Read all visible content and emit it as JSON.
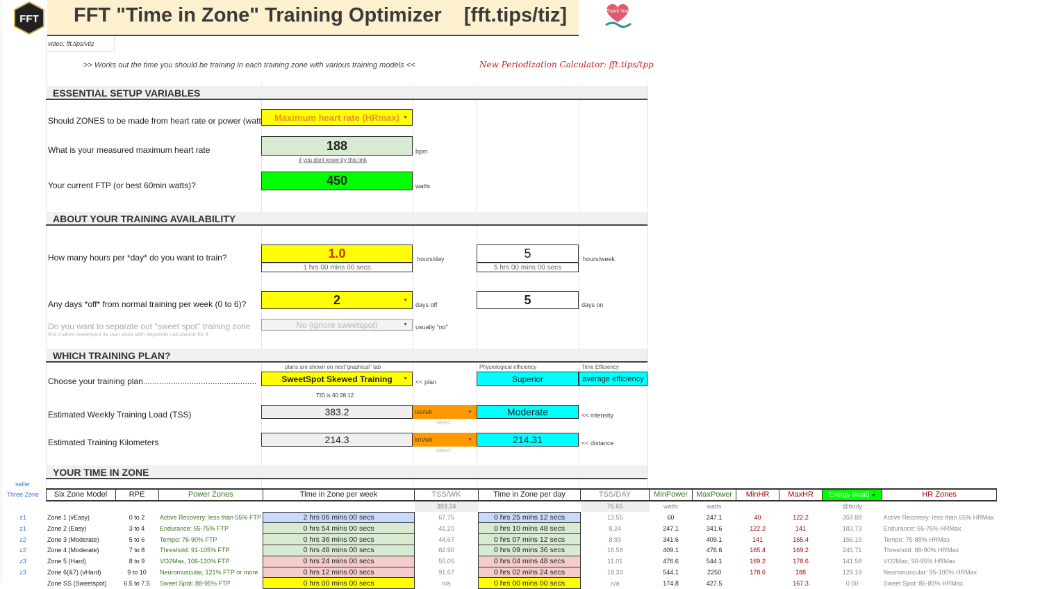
{
  "header": {
    "title": "FFT \"Time in Zone\" Training Optimizer    [fft.tips/tiz]",
    "logo_text": "FFT",
    "video_link": "video: fft.tips/vtiz",
    "tagline": ">> Works out the time you should be training in each training zone with various training models <<",
    "periodization_link": "New Periodization Calculator: fft.tips/tpp",
    "thanks_text": "Thank You!"
  },
  "setup": {
    "section_title": "ESSENTIAL SETUP VARIABLES",
    "zones_question": "Should ZONES to be made from heart rate or power (watts",
    "zones_value": "Maximum heart rate (HRmax)",
    "maxhr_question": "What is your measured maximum heart rate",
    "maxhr_value": "188",
    "maxhr_unit": "bpm",
    "maxhr_link": "if you dont know try this link",
    "ftp_question": "Your current FTP (or best 60min watts)?",
    "ftp_value": "450",
    "ftp_unit": "watts"
  },
  "availability": {
    "section_title": "ABOUT YOUR TRAINING AVAILABILITY",
    "hours_question": "How many hours per *day* do you want to train?",
    "hours_day_value": "1.0",
    "hours_day_unit": "hours/day",
    "hours_day_sub": "1 hrs 00 mins 00 secs",
    "hours_week_value": "5",
    "hours_week_unit": "hours/week",
    "hours_week_sub": "5 hrs 00 mins 00 secs",
    "days_off_question": "Any days *off* from normal training per week (0 to 6)?",
    "days_off_value": "2",
    "days_off_unit": "days off",
    "days_on_value": "5",
    "days_on_unit": "days on",
    "sweetspot_question": "Do you want to separate out \"sweet spot\" training zone",
    "sweetspot_note": "this makes sweetspot its own zone with separate calculation for it",
    "sweetspot_value": "No (ignore sweetspot)",
    "sweetspot_hint": "usually \"no\""
  },
  "plan": {
    "section_title": "WHICH TRAINING PLAN?",
    "plans_note": "plans are shown on next\"graphical\" tab",
    "phys_eff_label": "Physiological efficiency",
    "time_eff_label": "Time Efficiency",
    "choose_question": "Choose your training plan.................................................",
    "plan_value": "SweetSpot Skewed Training",
    "plan_hint": "<< plan",
    "phys_eff_value": "Superior",
    "time_eff_value": "average efficiency",
    "tid": "TID is 60:28:12",
    "tss_label": "Estimated Weekly Training Load (TSS)",
    "tss_value": "383.2",
    "tss_unit": "tss/wk",
    "tss_select": "select",
    "intensity_value": "Moderate",
    "intensity_hint": "<< intensity",
    "km_label": "Estimated Training Kilometers",
    "km_value": "214.3",
    "km_unit": "km/wk",
    "km_select": "select",
    "distance_value": "214.31",
    "distance_hint": "<< distance"
  },
  "zones": {
    "section_title": "YOUR TIME IN ZONE",
    "seiler_label": "seiler",
    "headers": {
      "three": "Three Zone",
      "six": "Six Zone Model",
      "rpe": "RPE",
      "power": "Power Zones",
      "tiz_week": "Time in Zone per week",
      "tss_wk": "TSS/WK",
      "tiz_day": "Time in Zone per day",
      "tss_day": "TSS/DAY",
      "minpower": "MinPower",
      "maxpower": "MaxPower",
      "minhr": "MinHR",
      "maxhr": "MaxHR",
      "energy": "Energy (kcal)",
      "hrzones": "HR Zones"
    },
    "subheaders": {
      "tss_wk_total": "383.24",
      "tss_day_total": "76.65",
      "watts1": "watts",
      "watts2": "watts",
      "body": "@body"
    },
    "rows": [
      {
        "three": "z1",
        "six": "Zone 1 (vEasy)",
        "rpe": "0 to 2",
        "power": "Active Recovery: less than 55% FTP",
        "week": "2 hrs 06 mins 00 secs",
        "tsswk": "67.75",
        "day": "0 hrs 25 mins 12 secs",
        "tssday": "13.55",
        "minp": "60",
        "maxp": "247.1",
        "minhr": "40",
        "maxhr": "122.2",
        "kcal": "359.88",
        "hrz": "Active Recovery: less than 65% HRMax"
      },
      {
        "three": "z1",
        "six": "Zone 2 (Easy)",
        "rpe": "3 to 4",
        "power": "Endurance: 55-75% FTP",
        "week": "0 hrs 54 mins 00 secs",
        "tsswk": "41.20",
        "day": "0 hrs 10 mins 48 secs",
        "tssday": "8.24",
        "minp": "247.1",
        "maxp": "341.6",
        "minhr": "122.2",
        "maxhr": "141",
        "kcal": "183.73",
        "hrz": "Endurance: 65-75% HRMax"
      },
      {
        "three": "z2",
        "six": "Zone 3 (Moderate)",
        "rpe": "5 to 6",
        "power": "Tempo: 76-90% FTP",
        "week": "0 hrs 36 mins 00 secs",
        "tsswk": "44.67",
        "day": "0 hrs 07 mins 12 secs",
        "tssday": "8.93",
        "minp": "341.6",
        "maxp": "409.1",
        "minhr": "141",
        "maxhr": "165.4",
        "kcal": "156.19",
        "hrz": "Tempo: 75-88% HRMax"
      },
      {
        "three": "z2",
        "six": "Zone 4 (Moderate)",
        "rpe": "7 to 8",
        "power": "Threshold: 91-105% FTP",
        "week": "0 hrs 48 mins 00 secs",
        "tsswk": "82.90",
        "day": "0 hrs 09 mins 36 secs",
        "tssday": "16.58",
        "minp": "409.1",
        "maxp": "476.6",
        "minhr": "165.4",
        "maxhr": "169.2",
        "kcal": "245.71",
        "hrz": "Threshold: 88-90% HRMax"
      },
      {
        "three": "z3",
        "six": "Zone 5 (Hard)",
        "rpe": "8 to 9",
        "power": "VO2Max, 106-120% FTP",
        "week": "0 hrs 24 mins 00 secs",
        "tsswk": "55.05",
        "day": "0 hrs 04 mins 48 secs",
        "tssday": "11.01",
        "minp": "476.6",
        "maxp": "544.1",
        "minhr": "169.2",
        "maxhr": "178.6",
        "kcal": "141.58",
        "hrz": "VO2Max, 90-95% HRMax"
      },
      {
        "three": "z3",
        "six": "Zone 6(&7) (vHard)",
        "rpe": "9 to 10",
        "power": "Neuromuscular, 121% FTP or more",
        "week": "0 hrs 12 mins 00 secs",
        "tsswk": "91.67",
        "day": "0 hrs 02 mins 24 secs",
        "tssday": "18.33",
        "minp": "544.1",
        "maxp": "2250",
        "minhr": "178.6",
        "maxhr": "188",
        "kcal": "129.19",
        "hrz": "Neuromuscular: 95-100% HRMax"
      },
      {
        "three": "",
        "six": "Zone SS (Sweetspot)",
        "rpe": "6.5 to 7.5",
        "power": "Sweet Spot: 88-95% FTP",
        "week": "0 hrs 00 mins 00 secs",
        "tsswk": "n/a",
        "day": "0 hrs 00 mins 00 secs",
        "tssday": "n/a",
        "minp": "174.8",
        "maxp": "427.5",
        "minhr": "",
        "maxhr": "167.3",
        "kcal": "0.00",
        "hrz": "Sweet Spot: 86-89% HRMax"
      }
    ]
  },
  "colors": {
    "yellow": "#ffff00",
    "green": "#00ff00",
    "cyan": "#00ffff",
    "orange": "#ff9900",
    "title_bg": "#fdf0cf"
  }
}
